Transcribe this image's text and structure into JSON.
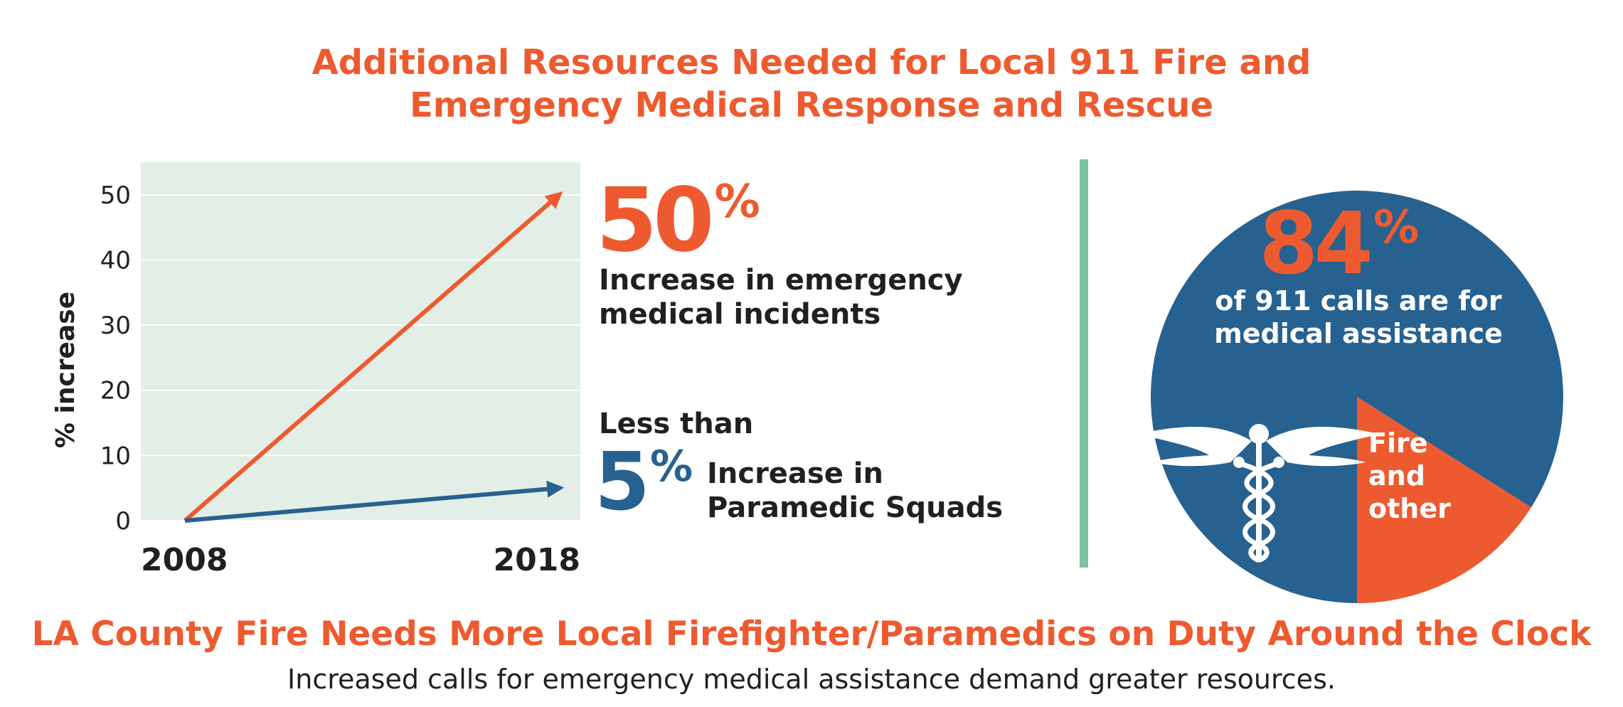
{
  "title": {
    "line1": "Additional Resources Needed for Local 911 Fire and",
    "line2": "Emergency Medical Response and Rescue"
  },
  "colors": {
    "accent_orange": "#ee5a30",
    "navy_blue": "#27618f",
    "plot_bg": "#e2eee6",
    "divider_green": "#7bc4a1",
    "text_dark": "#231f20"
  },
  "stat_emergency": {
    "value": "50",
    "sign": "%",
    "label_line1": "Increase in emergency",
    "label_line2": "medical incidents"
  },
  "stat_paramedic": {
    "prefix": "Less than",
    "value": "5",
    "sign": "%",
    "label_line1": "Increase in",
    "label_line2": "Paramedic Squads"
  },
  "pie_labels": {
    "big_value": "84",
    "big_sign": "%",
    "line1": "of 911 calls are for",
    "line2": "medical assistance",
    "minor_line1": "Fire",
    "minor_line2": "and",
    "minor_line3": "other",
    "icon": "caduceus-icon"
  },
  "bottom": {
    "headline": "LA County Fire Needs More Local Firefighter/Paramedics on Duty Around the Clock",
    "subline": "Increased calls for emergency medical assistance demand greater resources."
  },
  "chart_data": [
    {
      "type": "line",
      "x": [
        2008,
        2018
      ],
      "x_tick_labels": [
        "2008",
        "2018"
      ],
      "ylabel": "% increase",
      "ylim": [
        0,
        55
      ],
      "yticks": [
        0,
        10,
        20,
        30,
        40,
        50
      ],
      "grid": true,
      "series": [
        {
          "values": [
            0,
            50
          ],
          "color": "#ee5a30"
        },
        {
          "values": [
            0,
            5
          ],
          "color": "#27618f"
        }
      ]
    },
    {
      "type": "pie",
      "slices": [
        {
          "label": "of 911 calls are for medical assistance",
          "value": 84,
          "color": "#27618f"
        },
        {
          "label": "Fire and other",
          "value": 16,
          "color": "#ee5a30"
        }
      ]
    }
  ]
}
